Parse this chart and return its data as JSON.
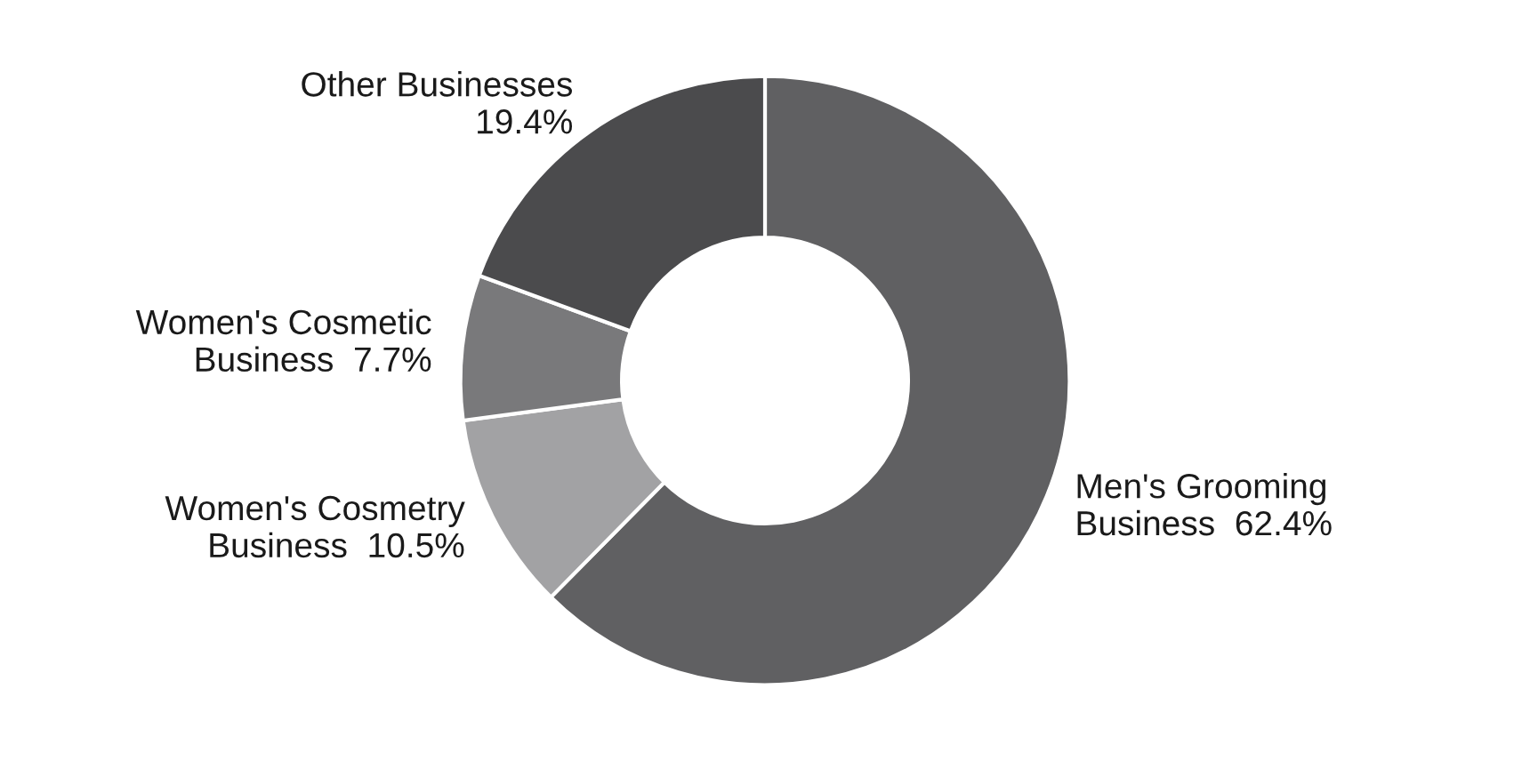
{
  "chart_data": {
    "type": "donut",
    "categories": [
      "Men's Grooming\nBusiness",
      "Women's Cosmetry\nBusiness",
      "Women's Cosmetic\nBusiness",
      "Other Businesses"
    ],
    "values": [
      62.4,
      10.5,
      7.7,
      19.4
    ],
    "value_labels": [
      "62.4%",
      "10.5%",
      "7.7%",
      "19.4%"
    ],
    "colors": [
      "#606062",
      "#a2a2a4",
      "#79797b",
      "#4b4b4d"
    ],
    "legend": false
  }
}
